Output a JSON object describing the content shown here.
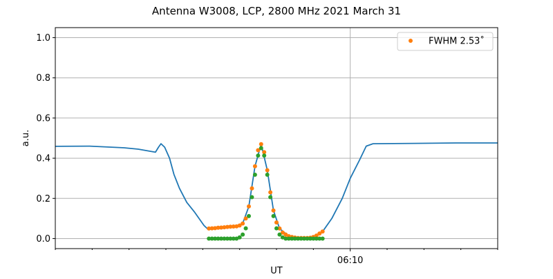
{
  "chart_data": {
    "type": "line+scatter",
    "title": "Antenna W3008, LCP, 2800 MHz 2021 March 31",
    "xlabel": "UT",
    "ylabel": "a.u.",
    "xlim": [
      "06:02:00",
      "06:14:00"
    ],
    "ylim": [
      -0.05,
      1.05
    ],
    "yticks": [
      0.0,
      0.2,
      0.4,
      0.6,
      0.8,
      1.0
    ],
    "ytick_labels": [
      "0.0",
      "0.2",
      "0.4",
      "0.6",
      "0.8",
      "1.0"
    ],
    "xticks_major": [
      {
        "t": "06:10:00",
        "label": "06:10"
      }
    ],
    "xticks_minor": [
      "06:02:00",
      "06:03:00",
      "06:04:00",
      "06:05:00",
      "06:06:00",
      "06:07:00",
      "06:08:00",
      "06:09:00",
      "06:11:00",
      "06:12:00",
      "06:13:00",
      "06:14:00"
    ],
    "grid": "horizontal at y ticks, vertical at major x tick",
    "legend": {
      "placement": "top-right",
      "entries": [
        {
          "label": "FWHM 2.53$^\\circ$",
          "display": "FWHM 2.53˚",
          "series": "fwhm"
        }
      ]
    },
    "series": [
      {
        "id": "signal",
        "type": "line",
        "color": "#1f77b4",
        "x": [
          "06:02:00",
          "06:02:56",
          "06:03:52",
          "06:04:15",
          "06:04:43",
          "06:04:48",
          "06:04:52",
          "06:04:58",
          "06:05:06",
          "06:05:13",
          "06:05:22",
          "06:05:34",
          "06:05:47",
          "06:06:02",
          "06:06:08",
          "06:06:30",
          "06:06:55",
          "06:07:05",
          "06:07:15",
          "06:07:25",
          "06:07:35",
          "06:07:45",
          "06:07:55",
          "06:08:05",
          "06:08:20",
          "06:08:45",
          "06:09:05",
          "06:09:15",
          "06:09:30",
          "06:09:47",
          "06:10:00",
          "06:10:15",
          "06:10:26",
          "06:10:37",
          "06:11:45",
          "06:12:52",
          "06:14:00"
        ],
        "y": [
          0.459,
          0.46,
          0.452,
          0.445,
          0.43,
          0.455,
          0.472,
          0.455,
          0.4,
          0.32,
          0.25,
          0.18,
          0.13,
          0.065,
          0.048,
          0.055,
          0.062,
          0.075,
          0.16,
          0.36,
          0.47,
          0.34,
          0.14,
          0.05,
          0.012,
          0.003,
          0.015,
          0.035,
          0.1,
          0.2,
          0.3,
          0.39,
          0.46,
          0.472,
          0.474,
          0.476,
          0.476
        ]
      },
      {
        "id": "fwhm",
        "name": "FWHM 2.53˚",
        "type": "scatter",
        "color": "#ff7f0e",
        "x": [
          "06:06:10",
          "06:06:15",
          "06:06:20",
          "06:06:25",
          "06:06:30",
          "06:06:35",
          "06:06:40",
          "06:06:45",
          "06:06:50",
          "06:06:55",
          "06:07:00",
          "06:07:05",
          "06:07:10",
          "06:07:15",
          "06:07:20",
          "06:07:25",
          "06:07:30",
          "06:07:35",
          "06:07:40",
          "06:07:45",
          "06:07:50",
          "06:07:55",
          "06:08:00",
          "06:08:05",
          "06:08:10",
          "06:08:15",
          "06:08:20",
          "06:08:25",
          "06:08:30",
          "06:08:35",
          "06:08:40",
          "06:08:45",
          "06:08:50",
          "06:08:55",
          "06:09:00",
          "06:09:05",
          "06:09:10",
          "06:09:15"
        ],
        "y": [
          0.05,
          0.051,
          0.052,
          0.054,
          0.055,
          0.056,
          0.058,
          0.059,
          0.06,
          0.061,
          0.065,
          0.075,
          0.1,
          0.16,
          0.25,
          0.36,
          0.44,
          0.47,
          0.43,
          0.34,
          0.23,
          0.14,
          0.08,
          0.05,
          0.03,
          0.02,
          0.012,
          0.008,
          0.005,
          0.003,
          0.003,
          0.003,
          0.003,
          0.004,
          0.008,
          0.015,
          0.025,
          0.035
        ]
      },
      {
        "id": "fit",
        "type": "scatter",
        "color": "#2ca02c",
        "x": [
          "06:06:10",
          "06:06:15",
          "06:06:20",
          "06:06:25",
          "06:06:30",
          "06:06:35",
          "06:06:40",
          "06:06:45",
          "06:06:50",
          "06:06:55",
          "06:07:00",
          "06:07:05",
          "06:07:10",
          "06:07:15",
          "06:07:20",
          "06:07:25",
          "06:07:30",
          "06:07:35",
          "06:07:40",
          "06:07:45",
          "06:07:50",
          "06:07:55",
          "06:08:00",
          "06:08:05",
          "06:08:10",
          "06:08:15",
          "06:08:20",
          "06:08:25",
          "06:08:30",
          "06:08:35",
          "06:08:40",
          "06:08:45",
          "06:08:50",
          "06:08:55",
          "06:09:00",
          "06:09:05",
          "06:09:10",
          "06:09:15"
        ],
        "y": [
          0,
          0,
          0,
          0,
          0,
          0,
          0,
          0,
          0,
          0,
          0.006,
          0.02,
          0.051,
          0.112,
          0.206,
          0.318,
          0.413,
          0.45,
          0.413,
          0.318,
          0.206,
          0.112,
          0.051,
          0.02,
          0.006,
          0,
          0,
          0,
          0,
          0,
          0,
          0,
          0,
          0,
          0,
          0,
          0,
          0
        ]
      }
    ]
  }
}
